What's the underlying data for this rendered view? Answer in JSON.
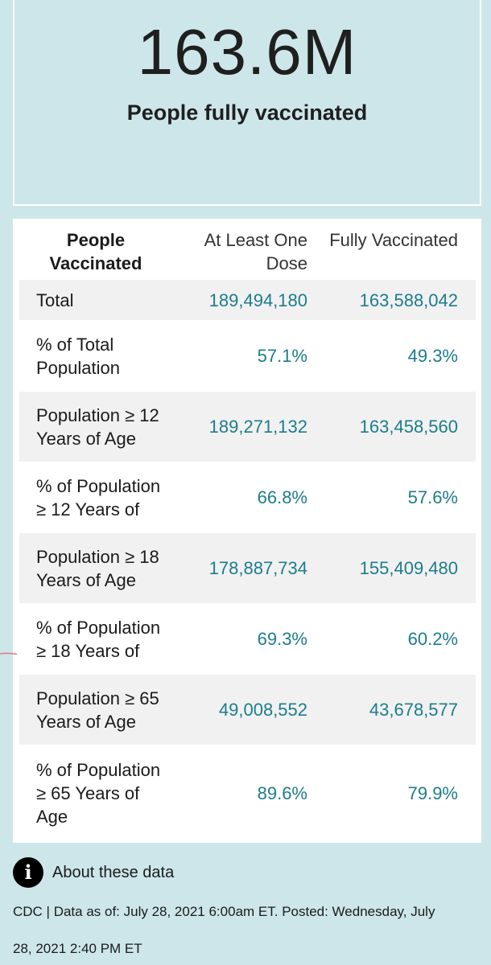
{
  "hero": {
    "number": "163.6M",
    "label": "People fully vaccinated"
  },
  "table": {
    "headers": {
      "label": "People Vaccinated",
      "first": "At Least One Dose",
      "full": "Fully Vaccinated"
    },
    "rows": [
      {
        "label": "Total",
        "first": "189,494,180",
        "full": "163,588,042"
      },
      {
        "label": "% of Total Population",
        "first": "57.1%",
        "full": "49.3%"
      },
      {
        "label": "Population ≥ 12 Years of Age",
        "first": "189,271,132",
        "full": "163,458,560"
      },
      {
        "label": "% of Population ≥ 12 Years of",
        "first": "66.8%",
        "full": "57.6%"
      },
      {
        "label": "Population ≥ 18 Years of Age",
        "first": "178,887,734",
        "full": "155,409,480"
      },
      {
        "label": "% of Population ≥ 18 Years of",
        "first": "69.3%",
        "full": "60.2%"
      },
      {
        "label": "Population ≥ 65 Years of Age",
        "first": "49,008,552",
        "full": "43,678,577"
      },
      {
        "label": "% of Population ≥ 65 Years of Age",
        "first": "89.6%",
        "full": "79.9%"
      }
    ]
  },
  "info": {
    "icon": "info-icon",
    "icon_glyph": "i",
    "label": "About these data"
  },
  "footer": {
    "line1": "CDC | Data as of: July 28, 2021 6:00am ET. Posted: Wednesday, July",
    "line2": "28, 2021 2:40 PM ET"
  },
  "colors": {
    "background": "#cde6ea",
    "number": "#1c7d8c",
    "shaded_row": "#f1f1f1"
  }
}
